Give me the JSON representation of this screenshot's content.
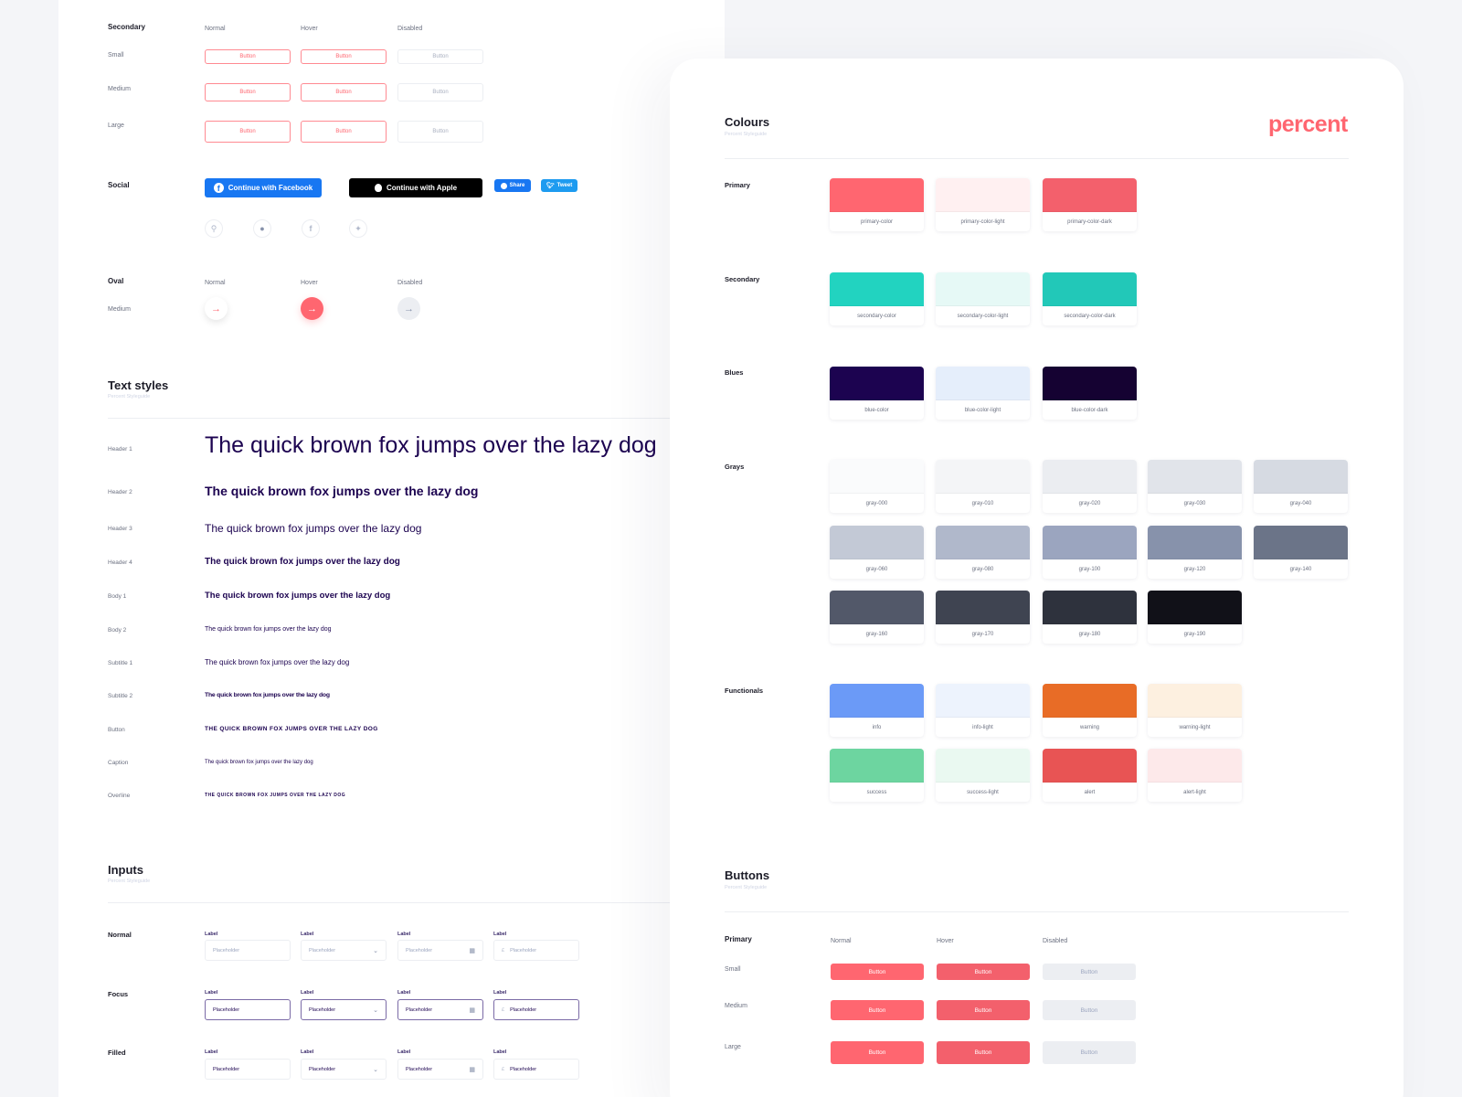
{
  "states": {
    "normal": "Normal",
    "hover": "Hover",
    "disabled": "Disabled"
  },
  "sizes": {
    "small": "Small",
    "medium": "Medium",
    "large": "Large"
  },
  "button_label": "Button",
  "secondary_buttons": {
    "section": "Secondary"
  },
  "social": {
    "section": "Social",
    "facebook_label": "Continue with Facebook",
    "apple_label": "Continue with Apple",
    "share_label": "Share",
    "tweet_label": "Tweet",
    "icons": [
      "link-icon",
      "snapchat-icon",
      "facebook-icon",
      "twitter-icon"
    ]
  },
  "oval": {
    "section": "Oval",
    "size": "Medium"
  },
  "text_styles": {
    "title": "Text styles",
    "subtitle": "Percent Styleguide",
    "rows": [
      {
        "label": "Header 1",
        "sample": "The quick brown fox jumps over the lazy dog"
      },
      {
        "label": "Header 2",
        "sample": "The quick brown fox jumps over the lazy dog"
      },
      {
        "label": "Header 3",
        "sample": "The quick brown fox jumps over the lazy dog"
      },
      {
        "label": "Header 4",
        "sample": "The quick brown fox jumps over the lazy dog"
      },
      {
        "label": "Body 1",
        "sample": "The quick brown fox jumps over the lazy dog"
      },
      {
        "label": "Body 2",
        "sample": "The quick brown fox jumps over the lazy dog"
      },
      {
        "label": "Subtitle 1",
        "sample": "The quick brown fox jumps over the lazy dog"
      },
      {
        "label": "Subtitle 2",
        "sample": "The quick brown fox jumps over the lazy dog"
      },
      {
        "label": "Button",
        "sample": "THE QUICK BROWN FOX JUMPS OVER THE LAZY DOG"
      },
      {
        "label": "Caption",
        "sample": "The quick brown fox jumps over the lazy dog"
      },
      {
        "label": "Overline",
        "sample": "THE QUICK BROWN FOX JUMPS OVER THE LAZY DOG"
      }
    ]
  },
  "inputs": {
    "title": "Inputs",
    "subtitle": "Percent Styleguide",
    "field_label": "Label",
    "placeholder": "Placeholder",
    "currency_symbol": "£",
    "states": [
      "Normal",
      "Focus",
      "Filled"
    ]
  },
  "colours": {
    "title": "Colours",
    "subtitle": "Percent Styleguide",
    "logo": "percent",
    "groups": [
      {
        "label": "Primary",
        "swatches": [
          {
            "name": "primary-color",
            "hex": "#ff6670"
          },
          {
            "name": "primary-color-light",
            "hex": "#fff0f1"
          },
          {
            "name": "primary-color-dark",
            "hex": "#f3606c"
          }
        ]
      },
      {
        "label": "Secondary",
        "swatches": [
          {
            "name": "secondary-color",
            "hex": "#22d3c0"
          },
          {
            "name": "secondary-color-light",
            "hex": "#e6f9f6"
          },
          {
            "name": "secondary-color-dark",
            "hex": "#22c8b8"
          }
        ]
      },
      {
        "label": "Blues",
        "swatches": [
          {
            "name": "blue-color",
            "hex": "#1c0350"
          },
          {
            "name": "blue-color-light",
            "hex": "#e5eefb"
          },
          {
            "name": "blue-color-dark",
            "hex": "#150232"
          }
        ]
      },
      {
        "label": "Grays",
        "swatches": [
          {
            "name": "gray-000",
            "hex": "#fafbfc"
          },
          {
            "name": "gray-010",
            "hex": "#f4f5f7"
          },
          {
            "name": "gray-020",
            "hex": "#ebedf1"
          },
          {
            "name": "gray-030",
            "hex": "#e1e4ea"
          },
          {
            "name": "gray-040",
            "hex": "#d6dae2"
          },
          {
            "name": "gray-060",
            "hex": "#c3c9d6"
          },
          {
            "name": "gray-080",
            "hex": "#b0b8cb"
          },
          {
            "name": "gray-100",
            "hex": "#9ba5bf"
          },
          {
            "name": "gray-120",
            "hex": "#8792ab"
          },
          {
            "name": "gray-140",
            "hex": "#6b7488"
          },
          {
            "name": "gray-160",
            "hex": "#525869"
          },
          {
            "name": "gray-170",
            "hex": "#3f4451"
          },
          {
            "name": "gray-180",
            "hex": "#2e323d"
          },
          {
            "name": "gray-190",
            "hex": "#111118"
          }
        ]
      },
      {
        "label": "Functionals",
        "swatches": [
          {
            "name": "info",
            "hex": "#6b9af7"
          },
          {
            "name": "info-light",
            "hex": "#edf3fd"
          },
          {
            "name": "warning",
            "hex": "#e86c26"
          },
          {
            "name": "warning-light",
            "hex": "#fdf0e0"
          },
          {
            "name": "success",
            "hex": "#6dd5a0"
          },
          {
            "name": "success-light",
            "hex": "#eaf9f1"
          },
          {
            "name": "alert",
            "hex": "#e85454"
          },
          {
            "name": "alert-light",
            "hex": "#fde9ea"
          }
        ]
      }
    ]
  },
  "buttons": {
    "title": "Buttons",
    "subtitle": "Percent Styleguide",
    "section": "Primary"
  }
}
